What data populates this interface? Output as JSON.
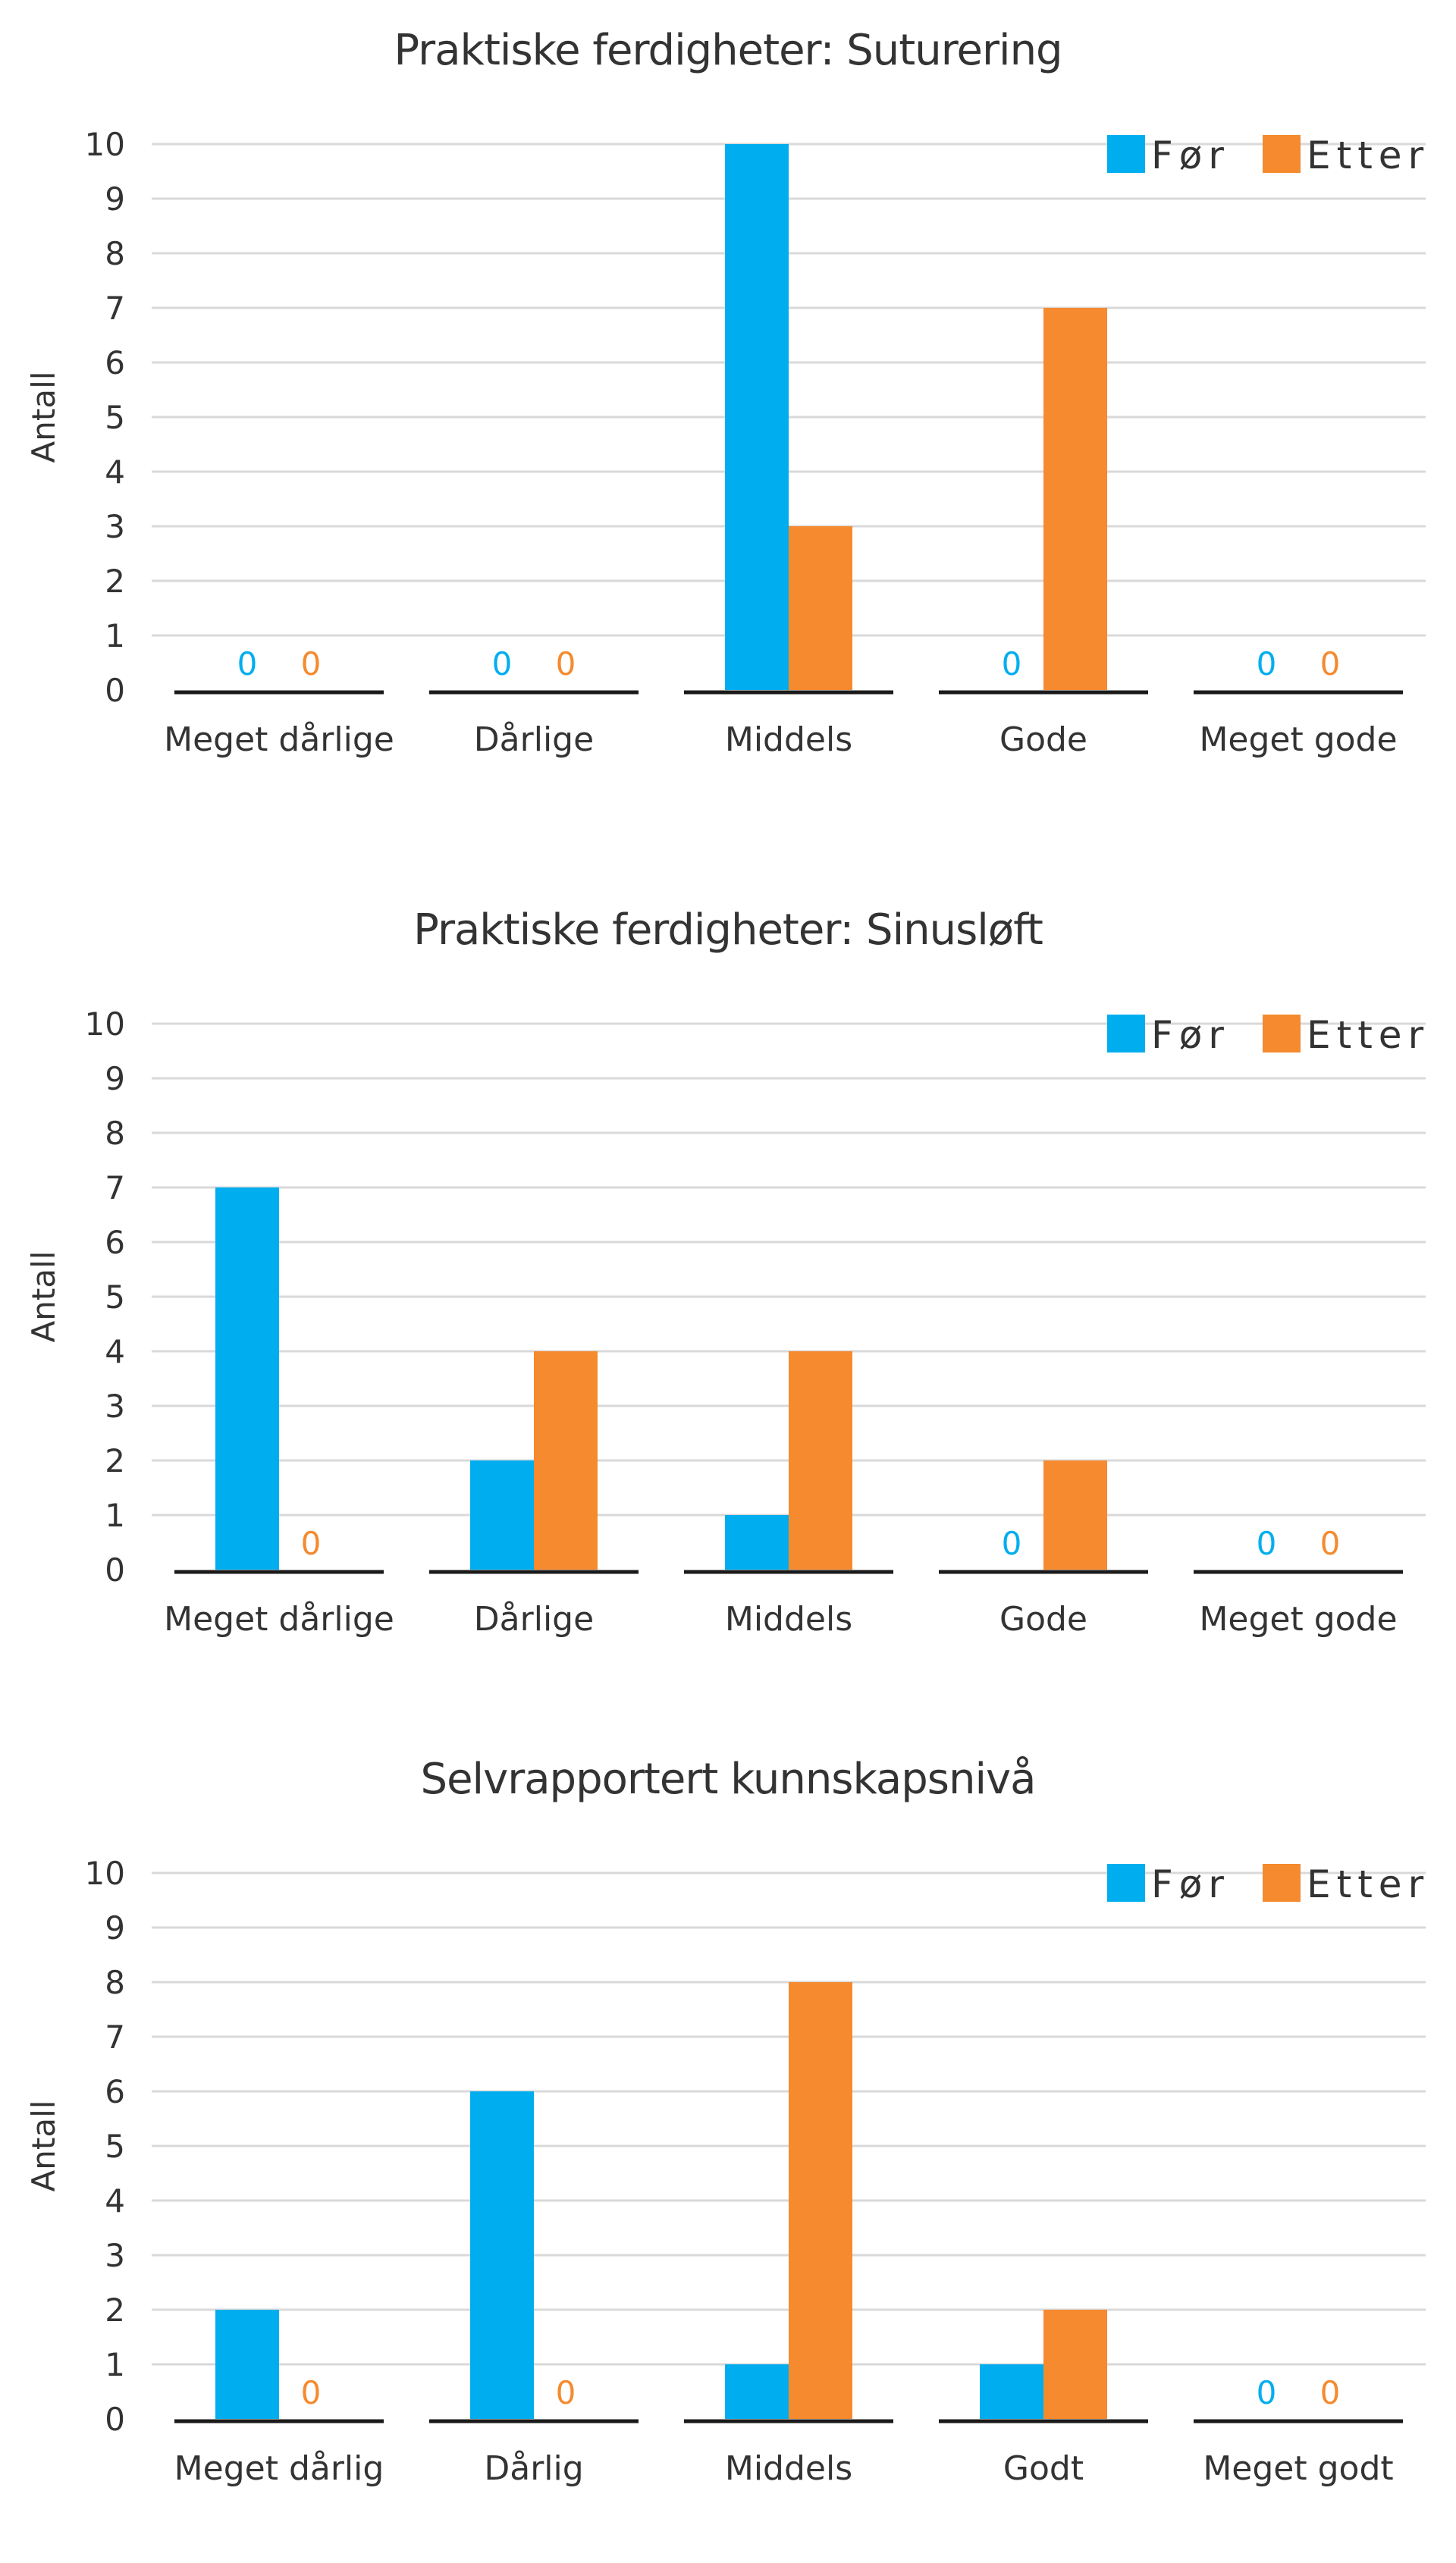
{
  "colors": {
    "for": "#00aeef",
    "etter": "#f58a2e"
  },
  "chart_data": [
    {
      "type": "bar",
      "title": "Praktiske ferdigheter: Suturering",
      "ylabel": "Antall",
      "xlabel": "",
      "ylim": [
        0,
        10
      ],
      "yticks": [
        "0",
        "1",
        "2",
        "3",
        "4",
        "5",
        "6",
        "7",
        "8",
        "9",
        "10"
      ],
      "legend_position": "top-right",
      "categories": [
        "Meget dårlige",
        "Dårlige",
        "Middels",
        "Gode",
        "Meget gode"
      ],
      "series": [
        {
          "name": "Før",
          "values": [
            0,
            0,
            10,
            0,
            0
          ]
        },
        {
          "name": "Etter",
          "values": [
            0,
            0,
            3,
            7,
            0
          ]
        }
      ],
      "zero_labels": "0"
    },
    {
      "type": "bar",
      "title": "Praktiske ferdigheter: Sinusløft",
      "ylabel": "Antall",
      "xlabel": "",
      "ylim": [
        0,
        10
      ],
      "yticks": [
        "0",
        "1",
        "2",
        "3",
        "4",
        "5",
        "6",
        "7",
        "8",
        "9",
        "10"
      ],
      "legend_position": "top-right",
      "categories": [
        "Meget dårlige",
        "Dårlige",
        "Middels",
        "Gode",
        "Meget gode"
      ],
      "series": [
        {
          "name": "Før",
          "values": [
            7,
            2,
            1,
            0,
            0
          ]
        },
        {
          "name": "Etter",
          "values": [
            0,
            4,
            4,
            2,
            0
          ]
        }
      ],
      "zero_labels": "0"
    },
    {
      "type": "bar",
      "title": "Selvrapportert  kunnskapsnivå",
      "ylabel": "Antall",
      "xlabel": "",
      "ylim": [
        0,
        10
      ],
      "yticks": [
        "0",
        "1",
        "2",
        "3",
        "4",
        "5",
        "6",
        "7",
        "8",
        "9",
        "10"
      ],
      "legend_position": "top-right",
      "categories": [
        "Meget dårlig",
        "Dårlig",
        "Middels",
        "Godt",
        "Meget godt"
      ],
      "series": [
        {
          "name": "Før",
          "values": [
            2,
            6,
            1,
            1,
            0
          ]
        },
        {
          "name": "Etter",
          "values": [
            0,
            0,
            8,
            2,
            0
          ]
        }
      ],
      "zero_labels": "0"
    }
  ]
}
